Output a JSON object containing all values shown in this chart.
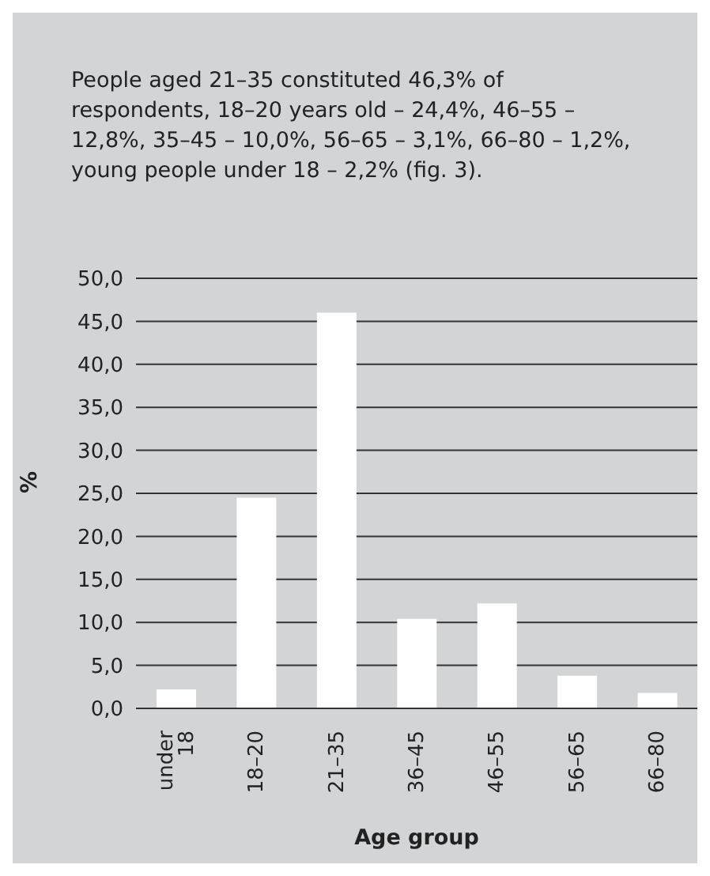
{
  "chart_data": {
    "type": "bar",
    "title": "People aged 21–35 constituted 46,3% of respondents, 18–20 years old – 24,4%, 46–55 – 12,8%, 35–45 – 10,0%, 56–65 – 3,1%, 66–80 – 1,2%, young people under 18 – 2,2% (fig. 3).",
    "categories": [
      "under 18",
      "18–20",
      "21–35",
      "36–45",
      "46–55",
      "56–65",
      "66–80"
    ],
    "values": [
      2.2,
      24.5,
      46.0,
      10.4,
      12.2,
      3.8,
      1.8
    ],
    "color": "#ffffff",
    "xlabel": "Age group",
    "ylabel": "%",
    "ylim": [
      0,
      50
    ],
    "yticks": [
      {
        "value": 0,
        "label": "0,0"
      },
      {
        "value": 5,
        "label": "5,0"
      },
      {
        "value": 10,
        "label": "10,0"
      },
      {
        "value": 15,
        "label": "15,0"
      },
      {
        "value": 20,
        "label": "20,0"
      },
      {
        "value": 25,
        "label": "25,0"
      },
      {
        "value": 30,
        "label": "30,0"
      },
      {
        "value": 35,
        "label": "35,0"
      },
      {
        "value": 40,
        "label": "40,0"
      },
      {
        "value": 45,
        "label": "45,0"
      },
      {
        "value": 50,
        "label": "50,0"
      }
    ],
    "grid": "y"
  }
}
